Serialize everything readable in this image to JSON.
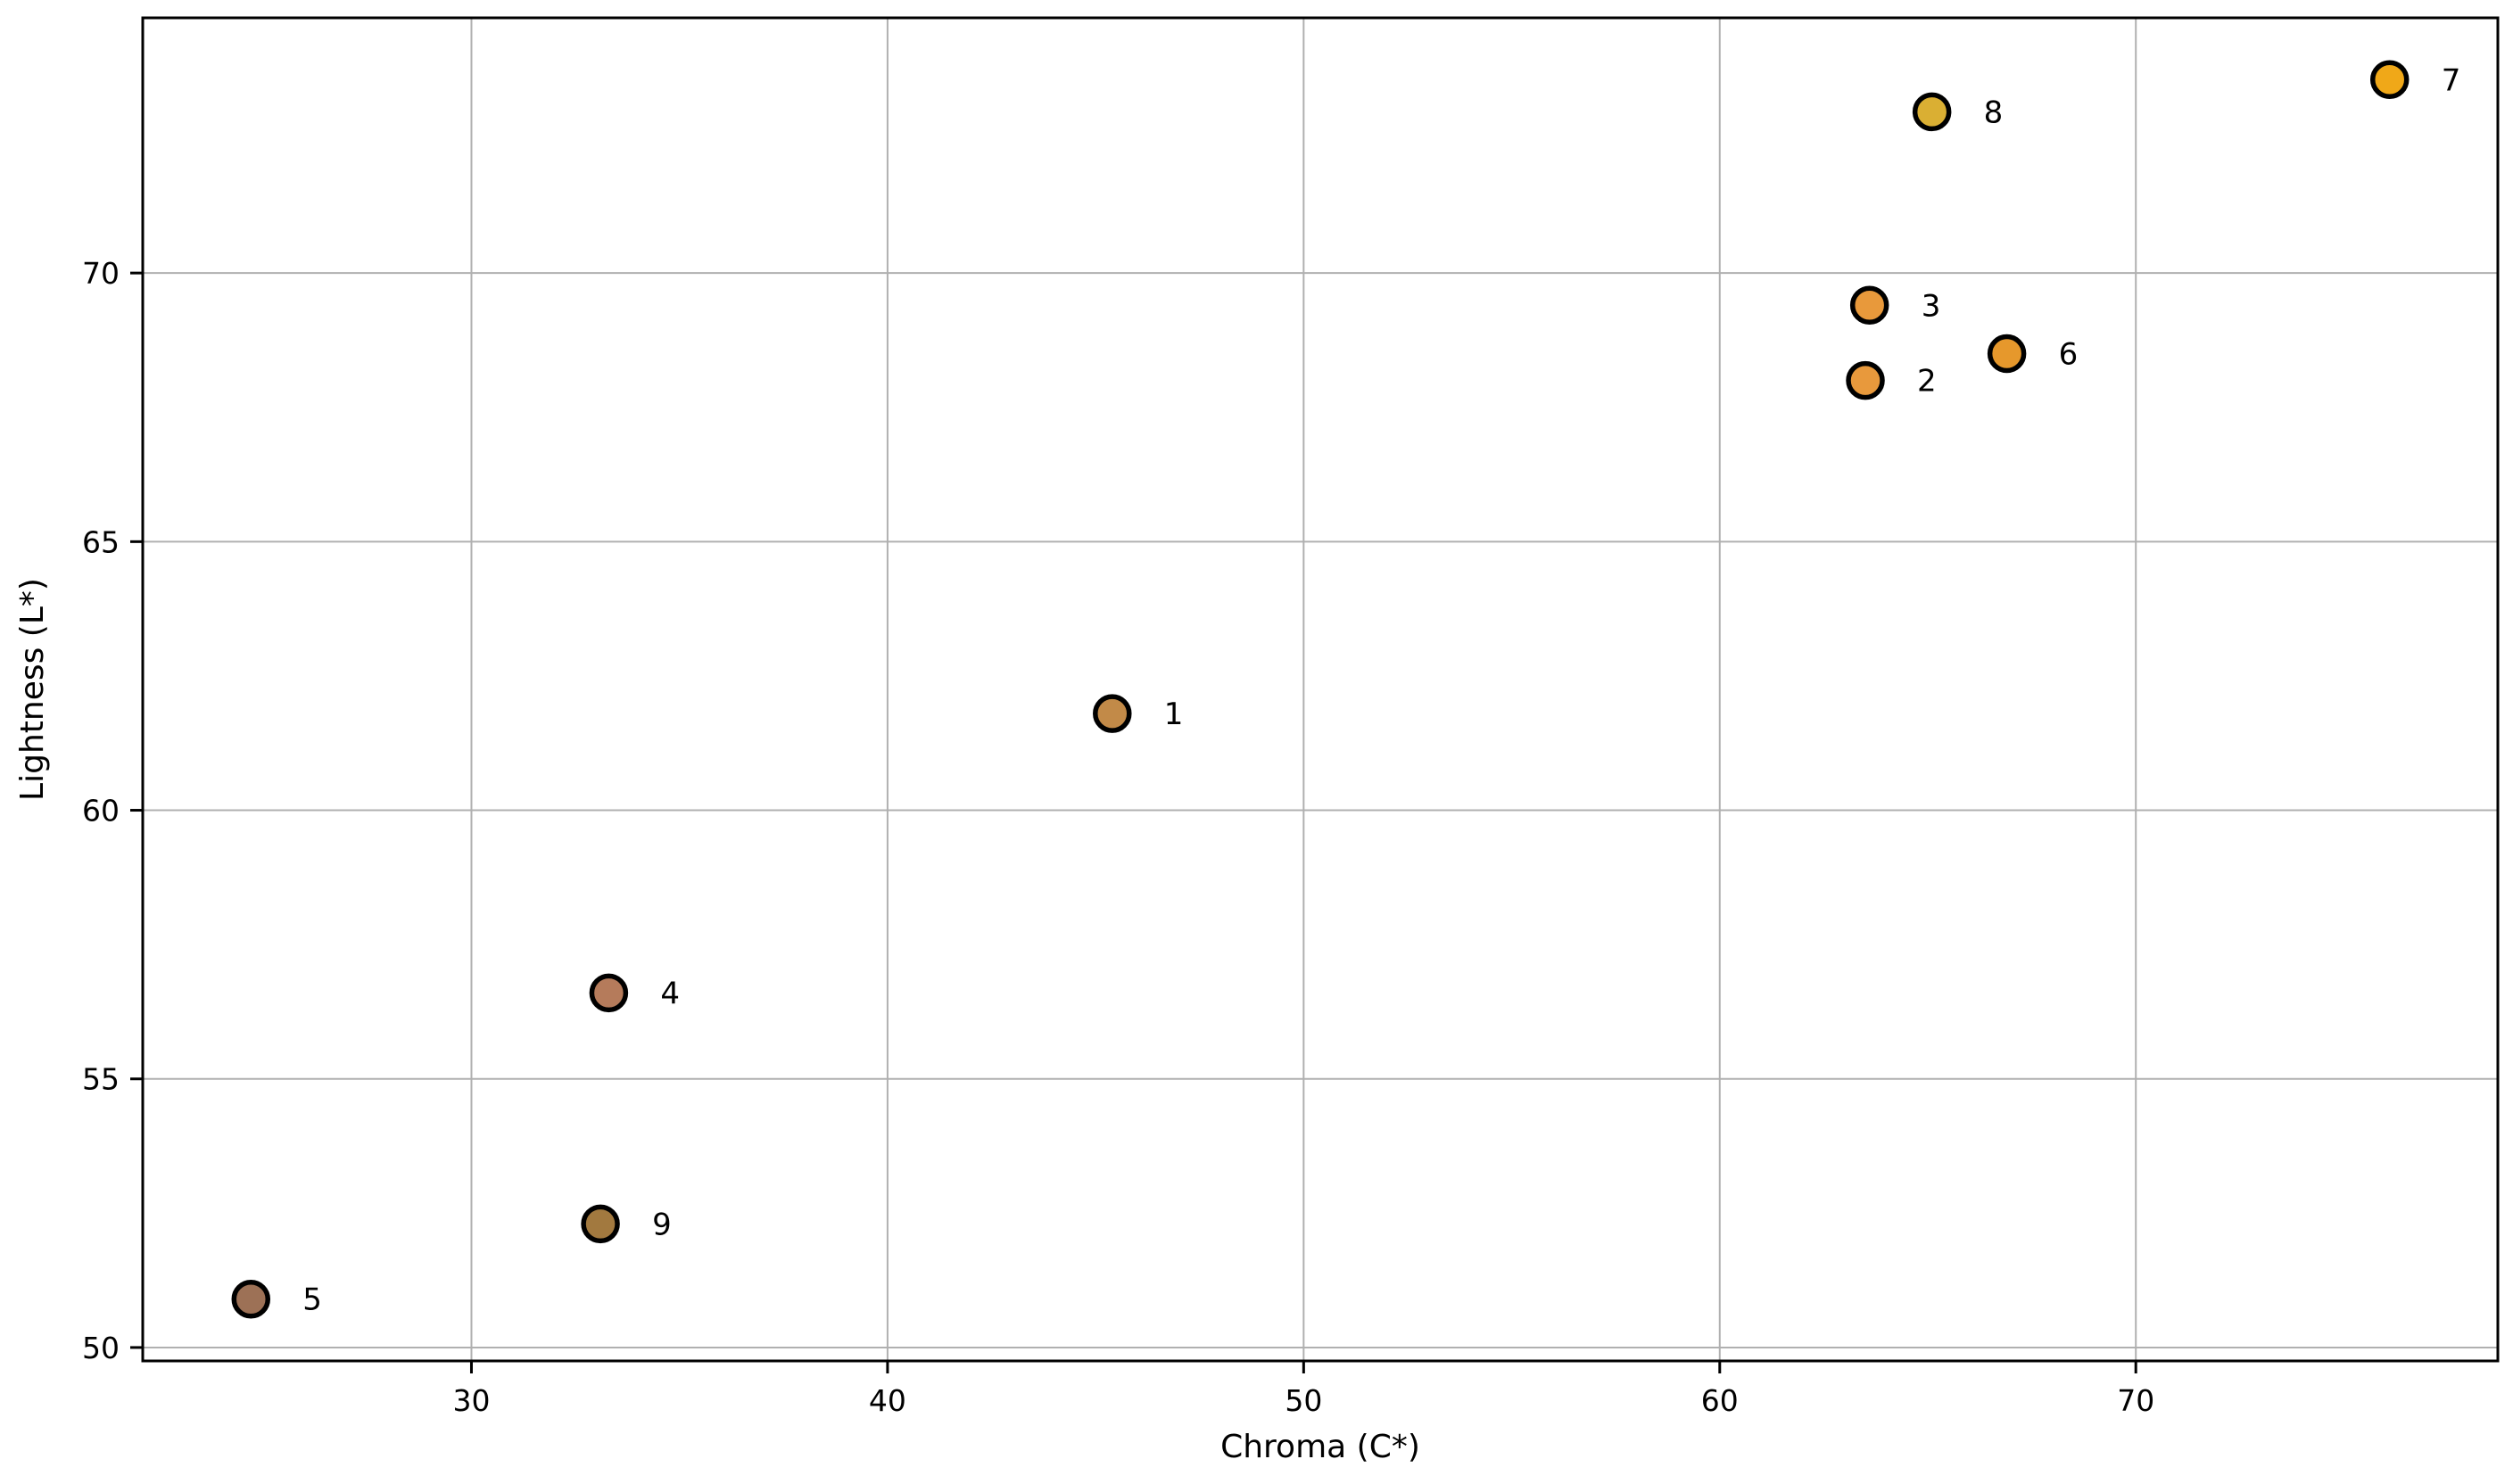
{
  "figure": {
    "background": "#ffffff"
  },
  "chart_data": {
    "type": "scatter",
    "title": "",
    "xlabel": "Chroma (C*)",
    "ylabel": "Lightness (L*)",
    "xlim": [
      22.1,
      78.7
    ],
    "ylim": [
      49.75,
      74.75
    ],
    "xticks": [
      "30",
      "40",
      "50",
      "60",
      "70"
    ],
    "yticks": [
      "50",
      "55",
      "60",
      "65",
      "70"
    ],
    "grid": true,
    "legend": "none",
    "grid_color": "#b0b0b0",
    "spine_color": "#000000",
    "marker_edge_color": "#000000",
    "points": [
      {
        "label": "1",
        "x": 45.4,
        "y": 61.8,
        "color": "#C28A48"
      },
      {
        "label": "2",
        "x": 63.5,
        "y": 68.0,
        "color": "#E8993C"
      },
      {
        "label": "3",
        "x": 63.6,
        "y": 69.4,
        "color": "#E8993B"
      },
      {
        "label": "4",
        "x": 33.3,
        "y": 56.6,
        "color": "#B57B5B"
      },
      {
        "label": "5",
        "x": 24.7,
        "y": 50.9,
        "color": "#9D7156"
      },
      {
        "label": "6",
        "x": 66.9,
        "y": 68.5,
        "color": "#E6982C"
      },
      {
        "label": "7",
        "x": 76.1,
        "y": 73.6,
        "color": "#F0A818"
      },
      {
        "label": "8",
        "x": 65.1,
        "y": 73.0,
        "color": "#DAAF33"
      },
      {
        "label": "9",
        "x": 33.1,
        "y": 52.3,
        "color": "#A2793F"
      }
    ]
  }
}
